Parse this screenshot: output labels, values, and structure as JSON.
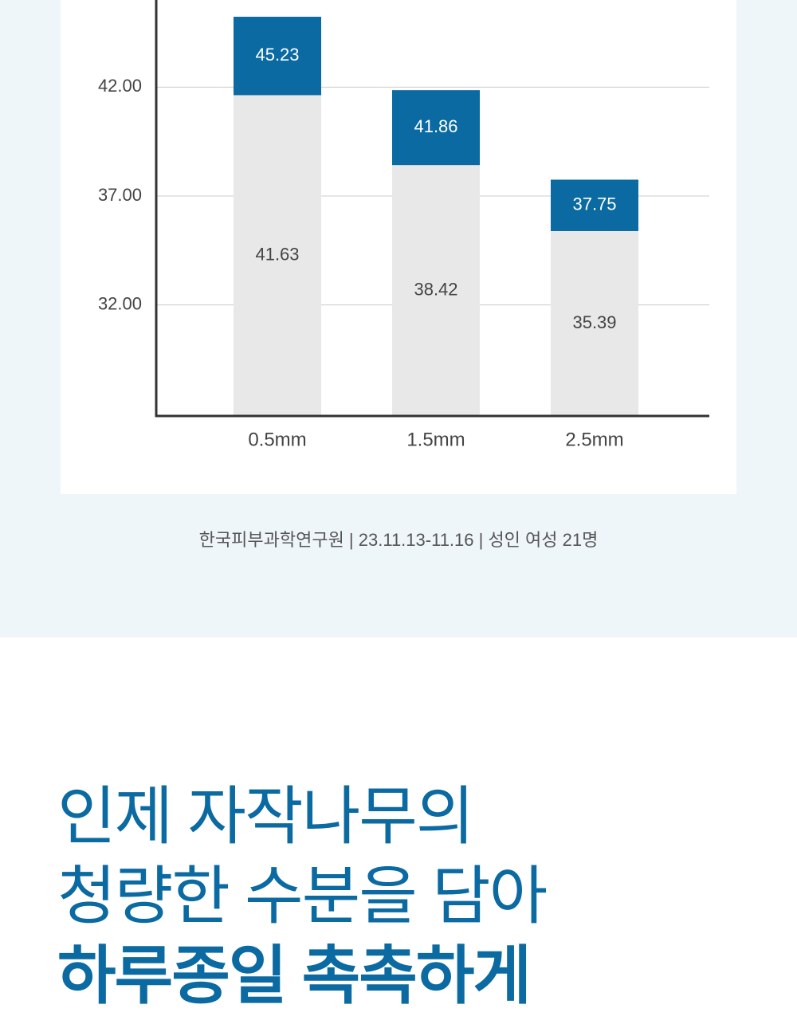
{
  "chart_data": {
    "type": "bar",
    "categories": [
      "0.5mm",
      "1.5mm",
      "2.5mm"
    ],
    "series": [
      {
        "color": "#0a6aa1",
        "values": [
          45.23,
          41.86,
          37.75
        ]
      },
      {
        "color": "#e8e8e8",
        "values": [
          41.63,
          38.42,
          35.39
        ]
      }
    ],
    "ylim": [
      26.9,
      46
    ],
    "yticks": [
      {
        "value": 32,
        "label": "32.00"
      },
      {
        "value": 37,
        "label": "37.00"
      },
      {
        "value": 42,
        "label": "42.00"
      }
    ],
    "grid": true
  },
  "caption": "한국피부과학연구원 | 23.11.13-11.16 | 성인 여성 21명",
  "headline": [
    "인제 자작나무의",
    "청량한 수분을 담아",
    "하루종일 촉촉하게"
  ]
}
